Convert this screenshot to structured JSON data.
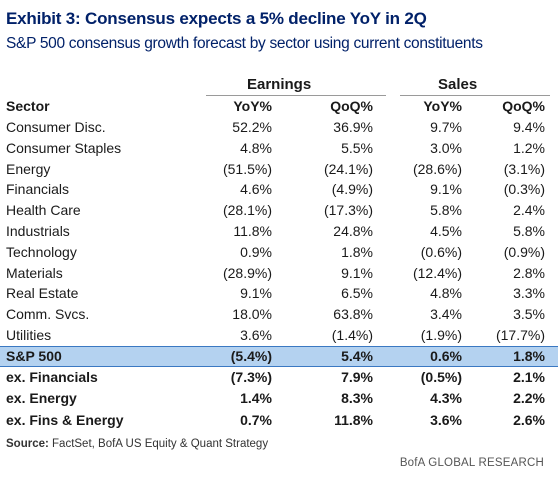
{
  "title": "Exhibit 3: Consensus expects a 5% decline YoY in 2Q",
  "subtitle": "S&P 500 consensus growth forecast by sector using current constituents",
  "column_groups": {
    "earnings": "Earnings",
    "sales": "Sales"
  },
  "columns": [
    "Sector",
    "YoY%",
    "QoQ%",
    "YoY%",
    "QoQ%"
  ],
  "rows": [
    {
      "sector": "Consumer Disc.",
      "e_yoy": "52.2%",
      "e_qoq": "36.9%",
      "s_yoy": "9.7%",
      "s_qoq": "9.4%"
    },
    {
      "sector": "Consumer Staples",
      "e_yoy": "4.8%",
      "e_qoq": "5.5%",
      "s_yoy": "3.0%",
      "s_qoq": "1.2%"
    },
    {
      "sector": "Energy",
      "e_yoy": "(51.5%)",
      "e_qoq": "(24.1%)",
      "s_yoy": "(28.6%)",
      "s_qoq": "(3.1%)"
    },
    {
      "sector": "Financials",
      "e_yoy": "4.6%",
      "e_qoq": "(4.9%)",
      "s_yoy": "9.1%",
      "s_qoq": "(0.3%)"
    },
    {
      "sector": "Health Care",
      "e_yoy": "(28.1%)",
      "e_qoq": "(17.3%)",
      "s_yoy": "5.8%",
      "s_qoq": "2.4%"
    },
    {
      "sector": "Industrials",
      "e_yoy": "11.8%",
      "e_qoq": "24.8%",
      "s_yoy": "4.5%",
      "s_qoq": "5.8%"
    },
    {
      "sector": "Technology",
      "e_yoy": "0.9%",
      "e_qoq": "1.8%",
      "s_yoy": "(0.6%)",
      "s_qoq": "(0.9%)"
    },
    {
      "sector": "Materials",
      "e_yoy": "(28.9%)",
      "e_qoq": "9.1%",
      "s_yoy": "(12.4%)",
      "s_qoq": "2.8%"
    },
    {
      "sector": "Real Estate",
      "e_yoy": "9.1%",
      "e_qoq": "6.5%",
      "s_yoy": "4.8%",
      "s_qoq": "3.3%"
    },
    {
      "sector": "Comm. Svcs.",
      "e_yoy": "18.0%",
      "e_qoq": "63.8%",
      "s_yoy": "3.4%",
      "s_qoq": "3.5%"
    },
    {
      "sector": "Utilities",
      "e_yoy": "3.6%",
      "e_qoq": "(1.4%)",
      "s_yoy": "(1.9%)",
      "s_qoq": "(17.7%)"
    }
  ],
  "summary_rows": [
    {
      "sector": "S&P 500",
      "e_yoy": "(5.4%)",
      "e_qoq": "5.4%",
      "s_yoy": "0.6%",
      "s_qoq": "1.8%",
      "highlight": true
    },
    {
      "sector": "ex. Financials",
      "e_yoy": "(7.3%)",
      "e_qoq": "7.9%",
      "s_yoy": "(0.5%)",
      "s_qoq": "2.1%"
    },
    {
      "sector": "ex. Energy",
      "e_yoy": "1.4%",
      "e_qoq": "8.3%",
      "s_yoy": "4.3%",
      "s_qoq": "2.2%"
    },
    {
      "sector": "ex. Fins & Energy",
      "e_yoy": "0.7%",
      "e_qoq": "11.8%",
      "s_yoy": "3.6%",
      "s_qoq": "2.6%"
    }
  ],
  "source": {
    "label": "Source:",
    "text": " FactSet, BofA US Equity & Quant Strategy"
  },
  "brand": "BofA GLOBAL RESEARCH",
  "colors": {
    "title": "#012169",
    "highlight_fill": "#b4d2f0",
    "highlight_border": "#3a78c2"
  }
}
